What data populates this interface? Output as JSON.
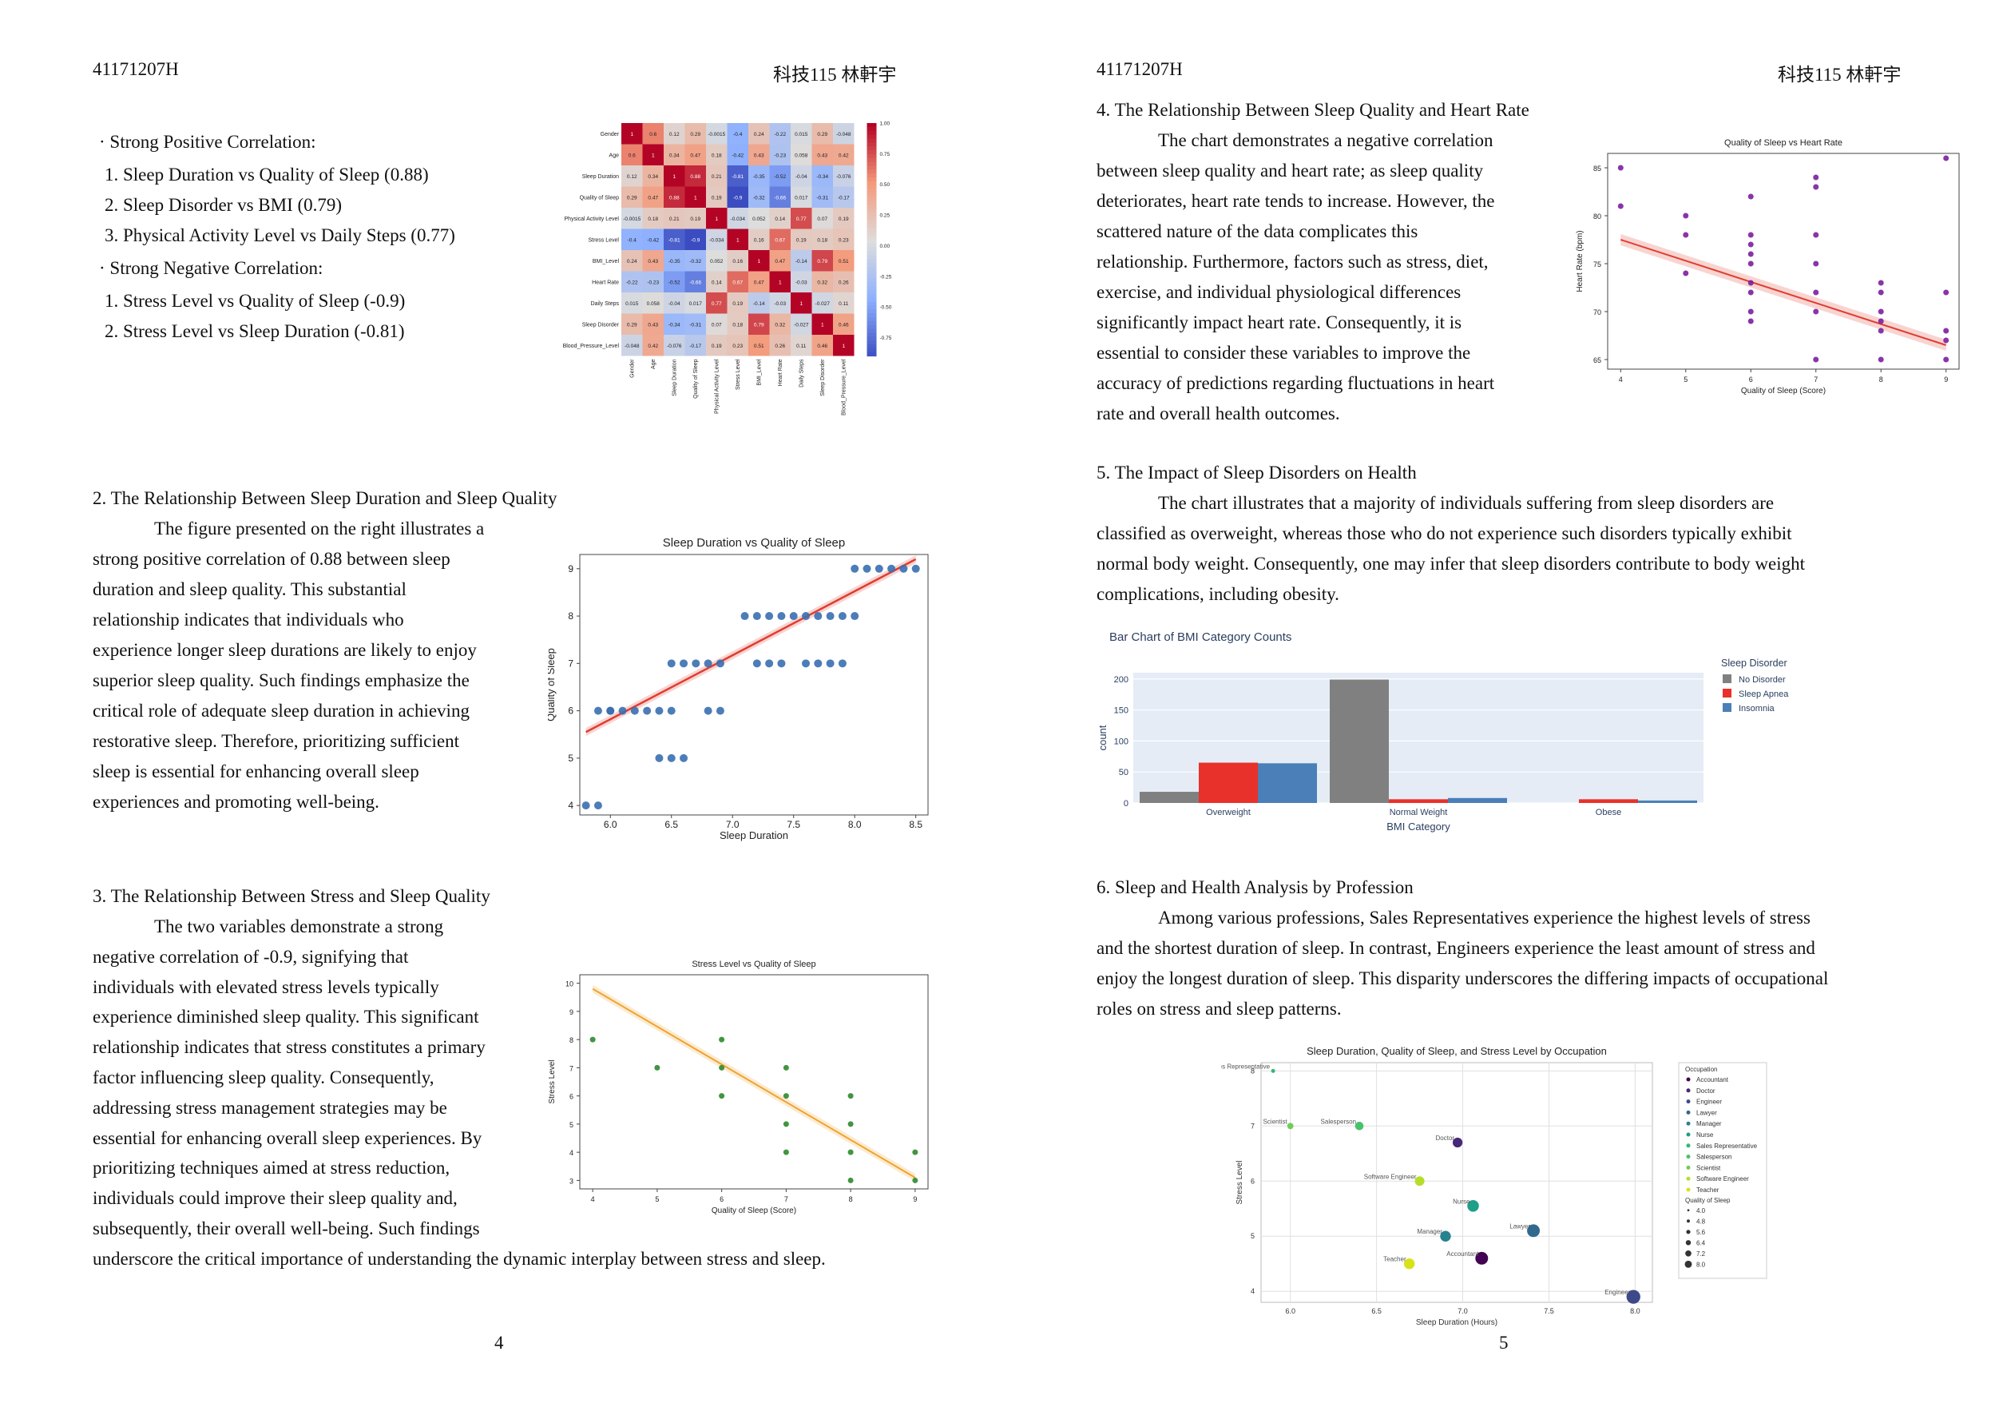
{
  "left": {
    "header_id": "41171207H",
    "header_name": "科技115 林軒宇",
    "bullet_pos": "· Strong Positive Correlation:",
    "pos1": "1. Sleep Duration vs Quality of Sleep (0.88)",
    "pos2": "2. Sleep Disorder vs BMI (0.79)",
    "pos3": "3. Physical Activity Level vs Daily Steps (0.77)",
    "bullet_neg": "· Strong Negative Correlation:",
    "neg1": "1. Stress Level vs Quality of Sleep (-0.9)",
    "neg2": "2. Stress Level vs Sleep Duration (-0.81)",
    "s2_title": "2. The Relationship Between Sleep Duration and Sleep Quality",
    "s2_lines": [
      "The figure presented on the right illustrates a",
      "strong positive correlation of 0.88 between sleep",
      "duration and sleep quality. This substantial",
      "relationship indicates that individuals who",
      "experience longer sleep durations are likely to enjoy",
      "superior sleep quality. Such findings emphasize the",
      "critical role of adequate sleep duration in achieving",
      "restorative sleep. Therefore, prioritizing sufficient",
      "sleep is essential for enhancing overall sleep",
      "experiences and promoting well-being."
    ],
    "s3_title": "3. The Relationship Between Stress and Sleep Quality",
    "s3_lines": [
      "The two variables demonstrate a strong",
      "negative correlation of -0.9, signifying that",
      "individuals with elevated stress levels typically",
      "experience diminished sleep quality. This significant",
      "relationship indicates that stress constitutes a primary",
      "factor influencing sleep quality. Consequently,",
      "addressing stress management strategies may be",
      "essential for enhancing overall sleep experiences. By",
      "prioritizing techniques aimed at stress reduction,",
      "individuals could improve their sleep quality and,",
      "subsequently, their overall well-being. Such findings",
      "underscore the critical importance of understanding the dynamic interplay between stress and sleep."
    ],
    "page_number": "4"
  },
  "right": {
    "header_id": "41171207H",
    "header_name": "科技115 林軒宇",
    "s4_title": "4. The Relationship Between Sleep Quality and Heart Rate",
    "s4_lines": [
      "The chart demonstrates a negative correlation",
      "between sleep quality and heart rate; as sleep quality",
      "deteriorates, heart rate tends to increase. However, the",
      "scattered nature of the data complicates this",
      "relationship. Furthermore, factors such as stress, diet,",
      "exercise, and individual physiological differences",
      "significantly impact heart rate. Consequently, it is",
      "essential to consider these variables to improve the",
      "accuracy of predictions regarding fluctuations in heart",
      "rate and overall health outcomes."
    ],
    "s5_title": "5. The Impact of Sleep Disorders on Health",
    "s5_lines": [
      "The chart illustrates that a majority of individuals suffering from sleep disorders are",
      "classified as overweight, whereas those who do not experience such disorders typically exhibit",
      "normal body weight. Consequently, one may infer that sleep disorders contribute to body weight",
      "complications, including obesity."
    ],
    "s6_title": "6. Sleep and Health Analysis by Profession",
    "s6_lines": [
      "Among various professions, Sales Representatives experience the highest levels of stress",
      "and the shortest duration of sleep. In contrast, Engineers experience the least amount of stress and",
      "enjoy the longest duration of sleep. This disparity underscores the differing impacts of occupational",
      "roles on stress and sleep patterns."
    ],
    "page_number": "5"
  },
  "chart_data": [
    {
      "id": "heatmap",
      "type": "heatmap",
      "labels": [
        "Gender",
        "Age",
        "Sleep Duration",
        "Quality of Sleep",
        "Physical Activity Level",
        "Stress Level",
        "BMI_Level",
        "Heart Rate",
        "Daily Steps",
        "Sleep Disorder",
        "Blood_Pressure_Level"
      ],
      "values": [
        [
          1,
          0.6,
          0.12,
          0.29,
          -0.0015,
          -0.4,
          0.24,
          -0.22,
          0.015,
          0.29,
          -0.048
        ],
        [
          0.6,
          1,
          0.34,
          0.47,
          0.18,
          -0.42,
          0.43,
          -0.23,
          0.058,
          0.43,
          0.42
        ],
        [
          0.12,
          0.34,
          1,
          0.88,
          0.21,
          -0.81,
          -0.35,
          -0.52,
          -0.04,
          -0.34,
          -0.076
        ],
        [
          0.29,
          0.47,
          0.88,
          1,
          0.19,
          -0.9,
          -0.32,
          -0.66,
          0.017,
          -0.31,
          -0.17
        ],
        [
          -0.0015,
          0.18,
          0.21,
          0.19,
          1,
          -0.034,
          0.052,
          0.14,
          0.77,
          0.07,
          0.19
        ],
        [
          -0.4,
          -0.42,
          -0.81,
          -0.9,
          -0.034,
          1,
          0.16,
          0.67,
          0.19,
          0.18,
          0.23
        ],
        [
          0.24,
          0.43,
          -0.35,
          -0.32,
          0.052,
          0.16,
          1,
          0.47,
          -0.14,
          0.79,
          0.51
        ],
        [
          -0.22,
          -0.23,
          -0.52,
          -0.66,
          0.14,
          0.67,
          0.47,
          1,
          -0.03,
          0.32,
          0.26
        ],
        [
          0.015,
          0.058,
          -0.04,
          0.017,
          0.77,
          0.19,
          -0.14,
          -0.03,
          1,
          -0.027,
          0.11
        ],
        [
          0.29,
          0.43,
          -0.34,
          -0.31,
          0.07,
          0.18,
          0.79,
          0.32,
          -0.027,
          1,
          0.46
        ],
        [
          -0.048,
          0.42,
          -0.076,
          -0.17,
          0.19,
          0.23,
          0.51,
          0.26,
          0.11,
          0.46,
          1
        ]
      ],
      "colorbar_ticks": [
        "1.00",
        "0.75",
        "0.50",
        "0.25",
        "0.00",
        "-0.25",
        "-0.50",
        "-0.75"
      ],
      "vmin": -0.9,
      "vmax": 1
    },
    {
      "id": "duration_quality",
      "type": "scatter",
      "title": "Sleep Duration vs Quality of Sleep",
      "xlabel": "Sleep Duration",
      "ylabel": "Quality of Sleep",
      "xlim": [
        5.75,
        8.6
      ],
      "ylim": [
        3.8,
        9.3
      ],
      "xticks": [
        "6.0",
        "6.5",
        "7.0",
        "7.5",
        "8.0",
        "8.5"
      ],
      "yticks": [
        "4",
        "5",
        "6",
        "7",
        "8",
        "9"
      ],
      "points": [
        [
          5.8,
          4
        ],
        [
          5.9,
          4
        ],
        [
          5.9,
          6
        ],
        [
          6.0,
          6
        ],
        [
          6.0,
          6
        ],
        [
          6.1,
          6
        ],
        [
          6.2,
          6
        ],
        [
          6.3,
          6
        ],
        [
          6.4,
          6
        ],
        [
          6.5,
          6
        ],
        [
          6.8,
          6
        ],
        [
          6.9,
          6
        ],
        [
          6.4,
          5
        ],
        [
          6.5,
          5
        ],
        [
          6.6,
          5
        ],
        [
          6.5,
          7
        ],
        [
          6.6,
          7
        ],
        [
          6.7,
          7
        ],
        [
          6.8,
          7
        ],
        [
          6.9,
          7
        ],
        [
          7.2,
          7
        ],
        [
          7.3,
          7
        ],
        [
          7.4,
          7
        ],
        [
          7.6,
          7
        ],
        [
          7.7,
          7
        ],
        [
          7.8,
          7
        ],
        [
          7.9,
          7
        ],
        [
          7.1,
          8
        ],
        [
          7.2,
          8
        ],
        [
          7.3,
          8
        ],
        [
          7.4,
          8
        ],
        [
          7.5,
          8
        ],
        [
          7.6,
          8
        ],
        [
          7.7,
          8
        ],
        [
          7.8,
          8
        ],
        [
          7.9,
          8
        ],
        [
          8.0,
          8
        ],
        [
          8.0,
          9
        ],
        [
          8.1,
          9
        ],
        [
          8.2,
          9
        ],
        [
          8.3,
          9
        ],
        [
          8.4,
          9
        ],
        [
          8.5,
          9
        ]
      ],
      "regression": [
        [
          5.8,
          5.55
        ],
        [
          8.5,
          9.2
        ]
      ],
      "point_color": "#3a6fb0",
      "line_color": "#e03d2f"
    },
    {
      "id": "stress_quality",
      "type": "scatter",
      "title": "Stress Level vs Quality of Sleep",
      "xlabel": "Quality of Sleep (Score)",
      "ylabel": "Stress Level",
      "xlim": [
        3.8,
        9.2
      ],
      "ylim": [
        2.7,
        10.3
      ],
      "xticks": [
        "4",
        "5",
        "6",
        "7",
        "8",
        "9"
      ],
      "yticks": [
        "3",
        "4",
        "5",
        "6",
        "7",
        "8",
        "9",
        "10"
      ],
      "points": [
        [
          4,
          8
        ],
        [
          5,
          7
        ],
        [
          6,
          8
        ],
        [
          6,
          7
        ],
        [
          6,
          6
        ],
        [
          7,
          7
        ],
        [
          7,
          6
        ],
        [
          7,
          5
        ],
        [
          7,
          4
        ],
        [
          8,
          6
        ],
        [
          8,
          5
        ],
        [
          8,
          4
        ],
        [
          8,
          3
        ],
        [
          9,
          4
        ],
        [
          9,
          3
        ]
      ],
      "regression": [
        [
          4,
          9.8
        ],
        [
          9,
          3.1
        ]
      ],
      "point_color": "#2e8a2e",
      "line_color": "#f0a32f"
    },
    {
      "id": "quality_heartrate",
      "type": "scatter",
      "title": "Quality of Sleep vs Heart Rate",
      "xlabel": "Quality of Sleep (Score)",
      "ylabel": "Heart Rate (bpm)",
      "xlim": [
        3.8,
        9.2
      ],
      "ylim": [
        64,
        86.5
      ],
      "xticks": [
        "4",
        "5",
        "6",
        "7",
        "8",
        "9"
      ],
      "yticks": [
        "65",
        "70",
        "75",
        "80",
        "85"
      ],
      "points": [
        [
          4,
          85
        ],
        [
          4,
          81
        ],
        [
          5,
          80
        ],
        [
          5,
          78
        ],
        [
          5,
          74
        ],
        [
          6,
          82
        ],
        [
          6,
          78
        ],
        [
          6,
          77
        ],
        [
          6,
          76
        ],
        [
          6,
          75
        ],
        [
          6,
          73
        ],
        [
          6,
          72
        ],
        [
          6,
          70
        ],
        [
          6,
          69
        ],
        [
          7,
          84
        ],
        [
          7,
          83
        ],
        [
          7,
          78
        ],
        [
          7,
          75
        ],
        [
          7,
          72
        ],
        [
          7,
          70
        ],
        [
          7,
          65
        ],
        [
          8,
          73
        ],
        [
          8,
          72
        ],
        [
          8,
          70
        ],
        [
          8,
          69
        ],
        [
          8,
          68
        ],
        [
          8,
          65
        ],
        [
          9,
          86
        ],
        [
          9,
          72
        ],
        [
          9,
          68
        ],
        [
          9,
          67
        ],
        [
          9,
          65
        ]
      ],
      "regression": [
        [
          4,
          77.5
        ],
        [
          9,
          66.5
        ]
      ],
      "point_color": "#7b1f9e",
      "line_color": "#e03d2f"
    },
    {
      "id": "bmi_bar",
      "type": "bar",
      "title": "Bar Chart of BMI Category Counts",
      "xlabel": "BMI Category",
      "ylabel": "count",
      "ylim": [
        0,
        210
      ],
      "yticks": [
        "0",
        "50",
        "100",
        "150",
        "200"
      ],
      "categories": [
        "Overweight",
        "Normal Weight",
        "Obese"
      ],
      "legend_title": "Sleep Disorder",
      "series": [
        {
          "name": "No Disorder",
          "color": "#808080",
          "values": [
            18,
            199,
            0
          ]
        },
        {
          "name": "Sleep Apnea",
          "color": "#e8312a",
          "values": [
            65,
            6,
            6
          ]
        },
        {
          "name": "Insomnia",
          "color": "#4a7fb8",
          "values": [
            64,
            8,
            4
          ]
        }
      ]
    },
    {
      "id": "occupation_bubble",
      "type": "scatter",
      "title": "Sleep Duration, Quality of Sleep, and Stress Level by Occupation",
      "xlabel": "Sleep Duration (Hours)",
      "ylabel": "Stress Level",
      "xlim": [
        5.83,
        8.1
      ],
      "ylim": [
        3.8,
        8.15
      ],
      "xticks": [
        "6.0",
        "6.5",
        "7.0",
        "7.5",
        "8.0"
      ],
      "yticks": [
        "4",
        "5",
        "6",
        "7",
        "8"
      ],
      "legend_title": "Occupation",
      "size_title": "Quality of Sleep",
      "size_values": [
        "4.0",
        "4.8",
        "5.6",
        "6.4",
        "7.2",
        "8.0"
      ],
      "points": [
        {
          "name": "Accountant",
          "x": 7.11,
          "y": 4.6,
          "q": 7.9,
          "color": "#440154"
        },
        {
          "name": "Doctor",
          "x": 6.97,
          "y": 6.7,
          "q": 6.6,
          "color": "#482878"
        },
        {
          "name": "Engineer",
          "x": 7.99,
          "y": 3.9,
          "q": 8.4,
          "color": "#3e4989"
        },
        {
          "name": "Lawyer",
          "x": 7.41,
          "y": 5.1,
          "q": 7.9,
          "color": "#31688e"
        },
        {
          "name": "Manager",
          "x": 6.9,
          "y": 5.0,
          "q": 7.0,
          "color": "#26828e"
        },
        {
          "name": "Nurse",
          "x": 7.06,
          "y": 5.55,
          "q": 7.4,
          "color": "#1f9e89"
        },
        {
          "name": "Sales Representative",
          "x": 5.9,
          "y": 8.0,
          "q": 4.0,
          "color": "#35b779"
        },
        {
          "name": "Salesperson",
          "x": 6.4,
          "y": 7.0,
          "q": 6.0,
          "color": "#4ac16d"
        },
        {
          "name": "Scientist",
          "x": 6.0,
          "y": 7.0,
          "q": 5.0,
          "color": "#6ece58"
        },
        {
          "name": "Software Engineer",
          "x": 6.75,
          "y": 6.0,
          "q": 6.5,
          "color": "#b5de2b"
        },
        {
          "name": "Teacher",
          "x": 6.69,
          "y": 4.5,
          "q": 7.0,
          "color": "#d8e219"
        }
      ]
    }
  ]
}
